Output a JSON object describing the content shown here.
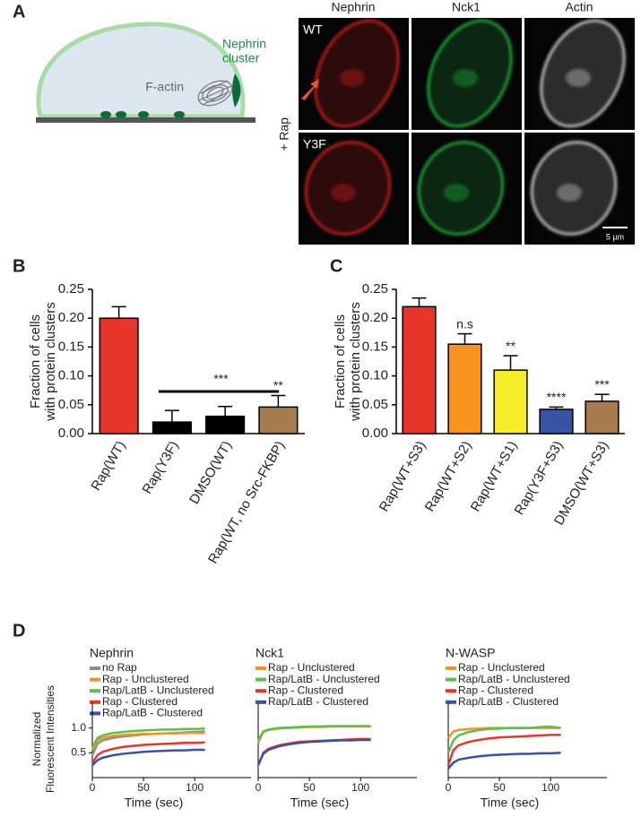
{
  "panel_labels": [
    "A",
    "B",
    "C",
    "D"
  ],
  "panel_a": {
    "diagram_labels": {
      "cluster": [
        "Nephrin",
        "cluster"
      ],
      "actin": "F-actin"
    },
    "columns": [
      "Nephrin",
      "Nck1",
      "Actin"
    ],
    "rows": [
      "WT",
      "Y3F"
    ],
    "condition": "+ Rap",
    "scale_bar": "5 µm"
  },
  "chart_data": [
    {
      "type": "bar",
      "ylabel": [
        "Fraction of cells",
        "with protein clusters"
      ],
      "categories": [
        "Rap(WT)",
        "Rap(Y3F)",
        "DMSO(WT)",
        "Rap(WT, no Src-FKBP)"
      ],
      "values": [
        0.2,
        0.02,
        0.03,
        0.046
      ],
      "errors": [
        0.02,
        0.02,
        0.017,
        0.02
      ],
      "colors": [
        "#e8352a",
        "#000000",
        "#000000",
        "#a67c4e"
      ],
      "annotations": [
        "***",
        "**"
      ],
      "ylim": [
        0,
        0.25
      ],
      "yticks": [
        {
          "value": 0,
          "label": "0.00"
        },
        0.05,
        {
          "value": 0.1,
          "label": "0.10"
        },
        0.15,
        {
          "value": 0.2,
          "label": "0.20"
        },
        0.25
      ]
    },
    {
      "type": "bar",
      "ylabel": [
        "Fraction of cells",
        "with protein clusters"
      ],
      "categories": [
        "Rap(WT+S3)",
        "Rap(WT+S2)",
        "Rap(WT+S1)",
        "Rap(Y3F+S3)",
        "DMSO(WT+S3)"
      ],
      "values": [
        0.22,
        0.155,
        0.11,
        0.042,
        0.056
      ],
      "errors": [
        0.015,
        0.018,
        0.025,
        0.004,
        0.012
      ],
      "colors": [
        "#e8352a",
        "#f7941d",
        "#f5ec2a",
        "#3953a4",
        "#a67c4e"
      ],
      "significance": [
        null,
        "n.s",
        "**",
        "****",
        "***"
      ],
      "ylim": [
        0,
        0.25
      ],
      "yticks": [
        {
          "value": 0,
          "label": "0.00"
        },
        0.05,
        {
          "value": 0.1,
          "label": "0.10"
        },
        0.15,
        {
          "value": 0.2,
          "label": "0.20"
        },
        0.25
      ]
    },
    {
      "type": "line",
      "title": "Nephrin",
      "xlabel": "Time (sec)",
      "ylabel": [
        "Normalized",
        "Fluorescent Intensities"
      ],
      "x": [
        0,
        5,
        10,
        20,
        30,
        40,
        50,
        60,
        70,
        80,
        90,
        100,
        110
      ],
      "series": [
        {
          "name": "no Rap",
          "color": "#8c8c8c",
          "values": [
            0.45,
            0.68,
            0.75,
            0.8,
            0.83,
            0.85,
            0.87,
            0.88,
            0.89,
            0.9,
            0.91,
            0.92,
            0.93
          ]
        },
        {
          "name": "Rap - Unclustered",
          "color": "#f7941d",
          "values": [
            0.55,
            0.75,
            0.8,
            0.84,
            0.86,
            0.87,
            0.88,
            0.88,
            0.89,
            0.89,
            0.9,
            0.9,
            0.9
          ]
        },
        {
          "name": "Rap/LatB - Unclustered",
          "color": "#5cbf4a",
          "values": [
            0.6,
            0.8,
            0.85,
            0.9,
            0.92,
            0.94,
            0.95,
            0.96,
            0.97,
            0.97,
            0.98,
            0.98,
            0.99
          ]
        },
        {
          "name": "Rap - Clustered",
          "color": "#e8352a",
          "values": [
            0.3,
            0.45,
            0.52,
            0.58,
            0.62,
            0.64,
            0.66,
            0.67,
            0.68,
            0.69,
            0.7,
            0.7,
            0.71
          ]
        },
        {
          "name": "Rap/LatB - Clustered",
          "color": "#3953a4",
          "values": [
            0.25,
            0.35,
            0.4,
            0.45,
            0.48,
            0.5,
            0.52,
            0.53,
            0.54,
            0.55,
            0.55,
            0.56,
            0.56
          ]
        }
      ],
      "xlim": [
        0,
        155
      ],
      "xticks": [
        0,
        50,
        100
      ],
      "ylim": [
        0,
        1.5
      ],
      "yticks": [
        0.5,
        {
          "value": 1,
          "label": "1.0"
        }
      ]
    },
    {
      "type": "line",
      "title": "Nck1",
      "xlabel": "Time (sec)",
      "x": [
        0,
        5,
        10,
        20,
        30,
        40,
        50,
        60,
        70,
        80,
        90,
        100,
        110
      ],
      "series": [
        {
          "name": "Rap - Unclustered",
          "color": "#f7941d",
          "values": [
            0.7,
            0.92,
            0.96,
            0.99,
            1.0,
            1.01,
            1.02,
            1.02,
            1.03,
            1.03,
            1.03,
            1.03,
            1.03
          ]
        },
        {
          "name": "Rap/LatB - Unclustered",
          "color": "#5cbf4a",
          "values": [
            0.75,
            0.93,
            0.97,
            1.0,
            1.01,
            1.02,
            1.03,
            1.03,
            1.04,
            1.04,
            1.04,
            1.04,
            1.04
          ]
        },
        {
          "name": "Rap - Clustered",
          "color": "#e8352a",
          "values": [
            0.25,
            0.5,
            0.58,
            0.65,
            0.69,
            0.72,
            0.73,
            0.74,
            0.75,
            0.76,
            0.77,
            0.78,
            0.78
          ]
        },
        {
          "name": "Rap/LatB - Clustered",
          "color": "#3953a4",
          "values": [
            0.25,
            0.48,
            0.56,
            0.63,
            0.67,
            0.7,
            0.72,
            0.73,
            0.74,
            0.75,
            0.75,
            0.76,
            0.76
          ]
        }
      ],
      "xlim": [
        0,
        155
      ],
      "xticks": [
        0,
        50,
        100
      ],
      "ylim": [
        0,
        1.5
      ]
    },
    {
      "type": "line",
      "title": "N-WASP",
      "xlabel": "Time (sec)",
      "x": [
        0,
        5,
        10,
        20,
        30,
        40,
        50,
        60,
        70,
        80,
        90,
        100,
        110
      ],
      "series": [
        {
          "name": "Rap - Unclustered",
          "color": "#f7941d",
          "values": [
            0.8,
            0.93,
            0.96,
            0.98,
            0.99,
            1.0,
            1.0,
            1.0,
            1.0,
            1.0,
            1.0,
            1.0,
            1.0
          ]
        },
        {
          "name": "Rap/LatB - Unclustered",
          "color": "#5cbf4a",
          "values": [
            0.5,
            0.75,
            0.85,
            0.92,
            0.96,
            0.98,
            0.99,
            1.0,
            1.0,
            1.0,
            1.02,
            1.03,
            1.0
          ]
        },
        {
          "name": "Rap - Clustered",
          "color": "#e8352a",
          "values": [
            0.25,
            0.55,
            0.65,
            0.72,
            0.76,
            0.79,
            0.81,
            0.82,
            0.83,
            0.84,
            0.85,
            0.86,
            0.86
          ]
        },
        {
          "name": "Rap/LatB - Clustered",
          "color": "#3953a4",
          "values": [
            0.18,
            0.3,
            0.36,
            0.4,
            0.43,
            0.45,
            0.46,
            0.47,
            0.48,
            0.48,
            0.49,
            0.49,
            0.5
          ]
        }
      ],
      "xlim": [
        0,
        155
      ],
      "xticks": [
        0,
        50,
        100
      ],
      "ylim": [
        0,
        1.5
      ]
    }
  ]
}
